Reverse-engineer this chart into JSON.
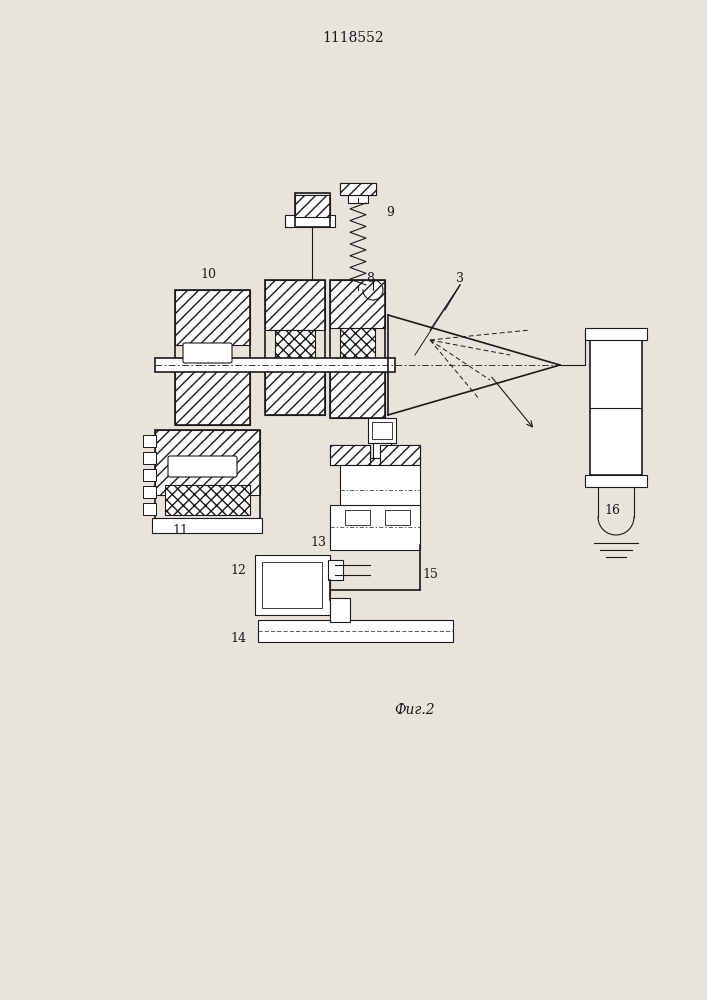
{
  "title": "1118552",
  "caption": "Фиг.2",
  "bg_color": "#e8e4dc",
  "line_color": "#1a1a1a",
  "fig_width": 7.07,
  "fig_height": 10.0,
  "title_fontsize": 10,
  "caption_fontsize": 10
}
